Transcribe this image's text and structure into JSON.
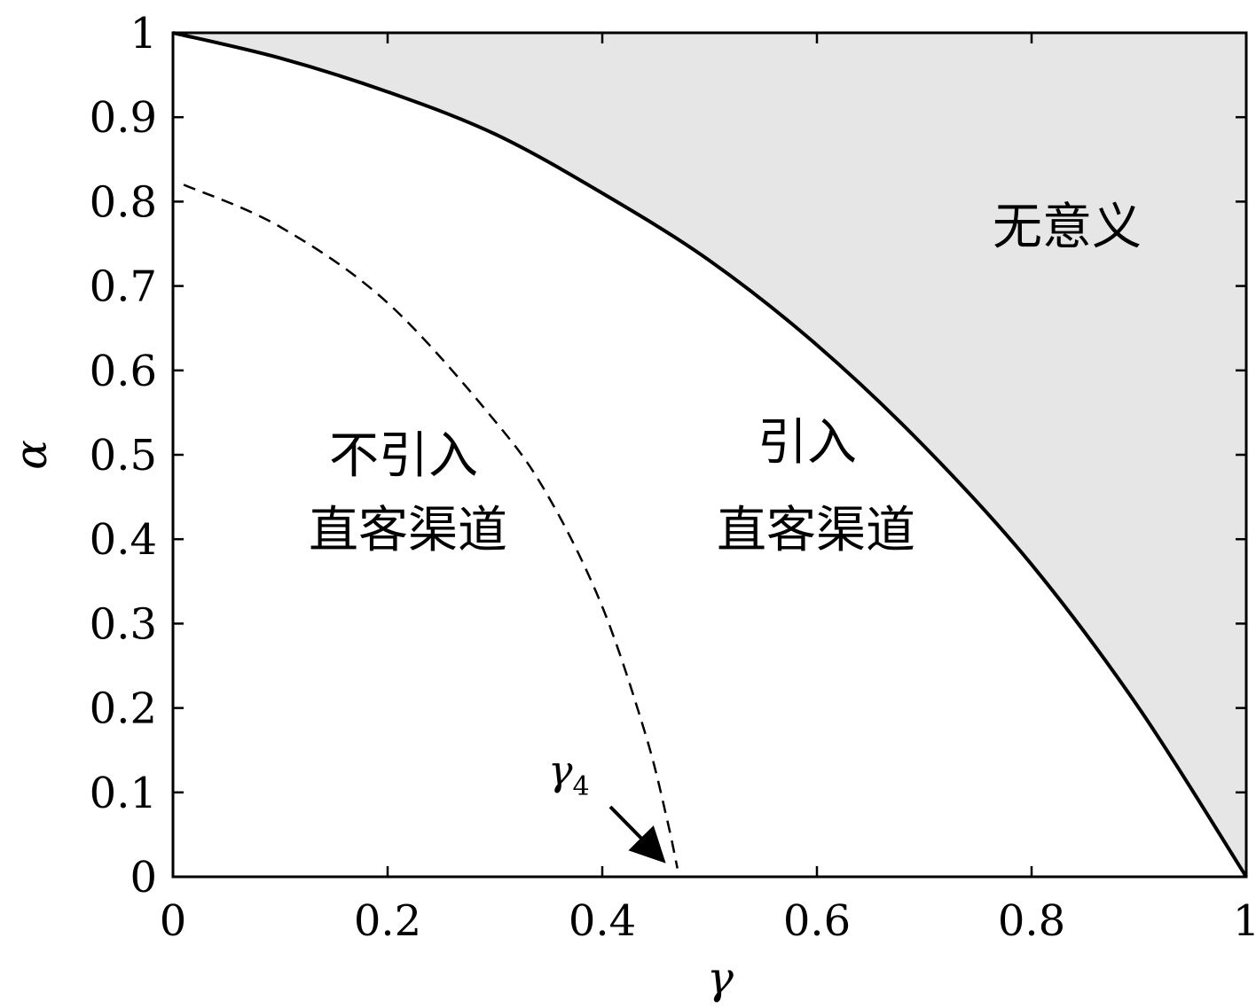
{
  "chart_data": {
    "type": "line",
    "title": "",
    "xlabel": "γ",
    "ylabel": "α",
    "xlim": [
      0,
      1
    ],
    "ylim": [
      0,
      1
    ],
    "x_ticks": [
      "0",
      "0.2",
      "0.4",
      "0.6",
      "0.8",
      "1"
    ],
    "y_ticks": [
      "0",
      "0.1",
      "0.2",
      "0.3",
      "0.4",
      "0.5",
      "0.6",
      "0.7",
      "0.8",
      "0.9",
      "1"
    ],
    "grid": false,
    "series": [
      {
        "style": "solid",
        "x": [
          0,
          0.1,
          0.2,
          0.3,
          0.4,
          0.5,
          0.6,
          0.7,
          0.8,
          0.9,
          1.0
        ],
        "y": [
          1.0,
          0.97,
          0.93,
          0.88,
          0.81,
          0.73,
          0.63,
          0.51,
          0.37,
          0.2,
          0.0
        ]
      },
      {
        "style": "dashed",
        "x": [
          0.01,
          0.1,
          0.2,
          0.3,
          0.35,
          0.4,
          0.44,
          0.46,
          0.47
        ],
        "y": [
          0.82,
          0.77,
          0.68,
          0.54,
          0.45,
          0.32,
          0.17,
          0.07,
          0.01
        ]
      }
    ],
    "shaded_region": {
      "label": "无意义",
      "color": "#e6e6e6"
    },
    "region_labels": [
      {
        "lines": [
          "不引入",
          "直客渠道"
        ]
      },
      {
        "lines": [
          "引入",
          "直客渠道"
        ]
      }
    ],
    "annotation": {
      "symbol": "γ",
      "subscript": "4",
      "points_to": [
        0.465,
        0.01
      ]
    }
  }
}
